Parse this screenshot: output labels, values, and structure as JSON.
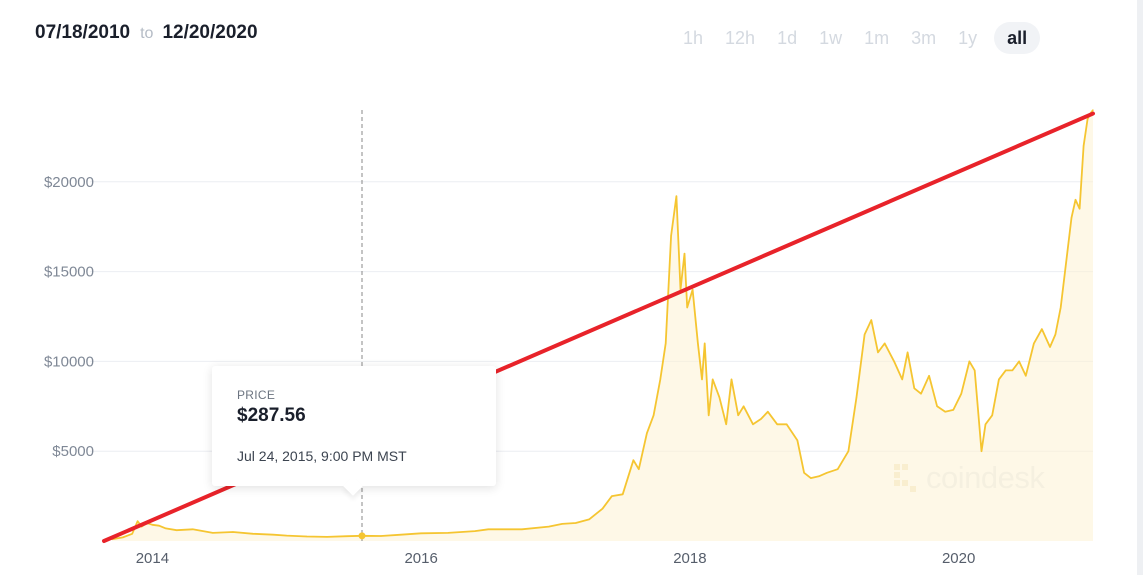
{
  "header": {
    "date_from": "07/18/2010",
    "to_label": "to",
    "date_to": "12/20/2020"
  },
  "range_tabs": [
    {
      "label": "1h",
      "active": false
    },
    {
      "label": "12h",
      "active": false
    },
    {
      "label": "1d",
      "active": false
    },
    {
      "label": "1w",
      "active": false
    },
    {
      "label": "1m",
      "active": false
    },
    {
      "label": "3m",
      "active": false
    },
    {
      "label": "1y",
      "active": false
    },
    {
      "label": "all",
      "active": true
    }
  ],
  "tooltip": {
    "label": "PRICE",
    "value": "$287.56",
    "date": "Jul 24, 2015, 9:00 PM MST"
  },
  "watermark": {
    "text": "coindesk",
    "icon": "coindesk-logo-icon"
  },
  "colors": {
    "price_line": "#f5c531",
    "area_fill": "#fdf3d3",
    "trend_line": "#e8232a",
    "grid": "#eceef2",
    "crosshair": "#888888"
  },
  "chart_data": {
    "type": "line",
    "xlabel": "",
    "ylabel": "",
    "x_ticks": [
      "2014",
      "2016",
      "2018",
      "2020"
    ],
    "x_tick_values": [
      2014.0,
      2016.0,
      2018.0,
      2020.0
    ],
    "y_ticks": [
      "$5000",
      "$10000",
      "$15000",
      "$20000"
    ],
    "y_tick_values": [
      5000,
      10000,
      15000,
      20000
    ],
    "xlim": [
      2013.64,
      2021.0
    ],
    "ylim": [
      0,
      25000
    ],
    "grid": true,
    "legend": "none",
    "crosshair_x": 2015.56,
    "series": [
      {
        "style": "price",
        "x": [
          2013.7,
          2013.78,
          2013.85,
          2013.89,
          2013.92,
          2013.96,
          2014.0,
          2014.05,
          2014.1,
          2014.18,
          2014.3,
          2014.45,
          2014.6,
          2014.75,
          2014.9,
          2015.0,
          2015.15,
          2015.3,
          2015.45,
          2015.56,
          2015.7,
          2015.85,
          2016.0,
          2016.2,
          2016.4,
          2016.5,
          2016.6,
          2016.75,
          2016.95,
          2017.05,
          2017.15,
          2017.25,
          2017.35,
          2017.42,
          2017.5,
          2017.58,
          2017.62,
          2017.68,
          2017.73,
          2017.78,
          2017.82,
          2017.86,
          2017.9,
          2017.93,
          2017.96,
          2017.98,
          2018.02,
          2018.06,
          2018.09,
          2018.11,
          2018.14,
          2018.17,
          2018.22,
          2018.27,
          2018.31,
          2018.36,
          2018.4,
          2018.47,
          2018.53,
          2018.58,
          2018.65,
          2018.72,
          2018.8,
          2018.85,
          2018.9,
          2018.96,
          2019.02,
          2019.1,
          2019.18,
          2019.24,
          2019.3,
          2019.35,
          2019.4,
          2019.45,
          2019.52,
          2019.58,
          2019.62,
          2019.67,
          2019.72,
          2019.78,
          2019.84,
          2019.9,
          2019.96,
          2020.02,
          2020.08,
          2020.12,
          2020.17,
          2020.2,
          2020.25,
          2020.3,
          2020.35,
          2020.4,
          2020.45,
          2020.5,
          2020.56,
          2020.62,
          2020.68,
          2020.72,
          2020.76,
          2020.8,
          2020.84,
          2020.87,
          2020.9,
          2020.93,
          2020.96,
          2020.98,
          2021.0
        ],
        "values": [
          100,
          200,
          400,
          1100,
          800,
          1000,
          900,
          850,
          700,
          600,
          650,
          450,
          500,
          400,
          350,
          300,
          250,
          230,
          270,
          287.56,
          280,
          350,
          430,
          450,
          550,
          650,
          650,
          650,
          800,
          950,
          1000,
          1200,
          1800,
          2500,
          2600,
          4500,
          4000,
          6000,
          7000,
          9000,
          11000,
          17000,
          19200,
          14000,
          16000,
          13000,
          14000,
          11000,
          9000,
          11000,
          7000,
          9000,
          8000,
          6500,
          9000,
          7000,
          7500,
          6500,
          6800,
          7200,
          6500,
          6500,
          5600,
          3800,
          3500,
          3600,
          3800,
          4000,
          5000,
          8000,
          11500,
          12300,
          10500,
          11000,
          10000,
          9000,
          10500,
          8500,
          8200,
          9200,
          7500,
          7200,
          7300,
          8200,
          10000,
          9500,
          5000,
          6500,
          7000,
          9000,
          9500,
          9500,
          10000,
          9200,
          11000,
          11800,
          10800,
          11500,
          13000,
          15500,
          18000,
          19000,
          18500,
          22000,
          23500,
          23800,
          24000
        ]
      },
      {
        "style": "trend",
        "x": [
          2013.64,
          2021.0
        ],
        "values": [
          0,
          23800
        ]
      }
    ]
  }
}
